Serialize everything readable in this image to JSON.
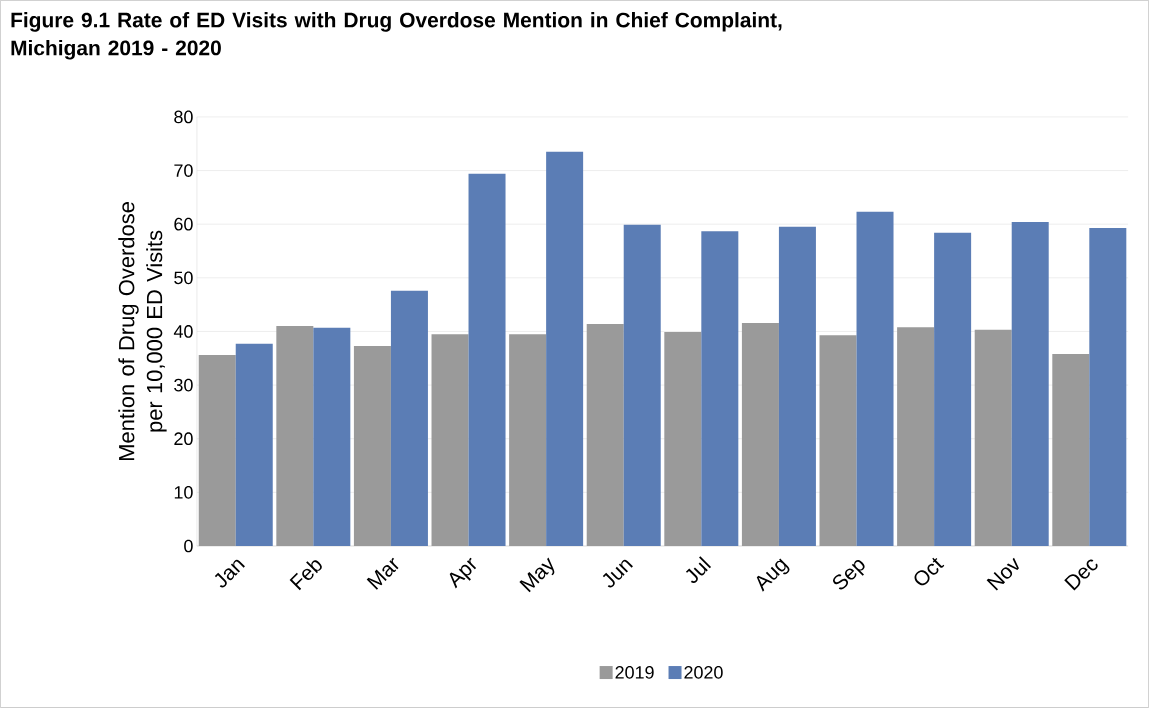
{
  "chart_data": {
    "type": "bar",
    "title": "Figure 9.1 Rate of ED Visits with Drug Overdose Mention in Chief Complaint, Michigan 2019 - 2020",
    "ylabel": "Mention of Drug Overdose per 10,000 ED Visits",
    "categories": [
      "Jan",
      "Feb",
      "Mar",
      "Apr",
      "May",
      "Jun",
      "Jul",
      "Aug",
      "Sep",
      "Oct",
      "Nov",
      "Dec"
    ],
    "series": [
      {
        "name": "2019",
        "color": "#9a9a9a",
        "values": [
          35.6,
          41.0,
          37.3,
          39.5,
          39.5,
          41.4,
          39.9,
          41.6,
          39.3,
          40.8,
          40.3,
          35.8
        ]
      },
      {
        "name": "2020",
        "color": "#5b7db5",
        "values": [
          37.7,
          40.7,
          47.6,
          69.4,
          73.5,
          59.9,
          58.7,
          59.5,
          62.3,
          58.4,
          60.4,
          59.3
        ]
      }
    ],
    "ylim": [
      0,
      80
    ],
    "yticks": [
      0,
      10,
      20,
      30,
      40,
      50,
      60,
      70,
      80
    ],
    "grid": "y",
    "legend": "bottom"
  }
}
